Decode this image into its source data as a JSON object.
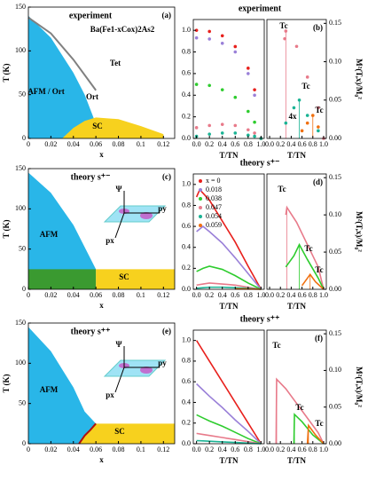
{
  "chart_data": [
    {
      "type": "area",
      "title": "experiment",
      "panel": "(a)",
      "xlabel": "x",
      "ylabel": "T (K)",
      "xlim": [
        0,
        0.13
      ],
      "ylim": [
        0,
        150
      ],
      "xticks": [
        0,
        0.02,
        0.04,
        0.06,
        0.08,
        0.1,
        0.12
      ],
      "yticks": [
        0,
        50,
        100,
        150
      ],
      "series": [
        {
          "style": "area",
          "color": "#29b6e8",
          "x": [
            0,
            0.02,
            0.04,
            0.05,
            0.065
          ],
          "values": [
            140,
            115,
            75,
            50,
            0
          ]
        },
        {
          "style": "area",
          "color": "#f7d11e",
          "x": [
            0.03,
            0.04,
            0.05,
            0.06,
            0.08,
            0.1,
            0.12
          ],
          "values": [
            0,
            12,
            20,
            24,
            22,
            14,
            5
          ]
        },
        {
          "style": "line",
          "color": "#808080",
          "x": [
            0,
            0.02,
            0.04,
            0.06
          ],
          "values": [
            138,
            120,
            90,
            55
          ]
        }
      ],
      "annotations": [
        "Ba(Fe1-xCox)2As2",
        "Tet",
        "AFM / Ort",
        "Ort",
        "SC"
      ]
    },
    {
      "type": "scatter",
      "title": "experiment",
      "xlabel": "T/TN",
      "xlim": [
        -0.05,
        1.05
      ],
      "ylim": [
        0,
        1.1
      ],
      "xticks": [
        {
          "value": 0,
          "label": "0.0"
        },
        0.2,
        0.4,
        0.6,
        0.8,
        {
          "value": 1,
          "label": "1.0"
        }
      ],
      "yticks": [
        {
          "value": 0,
          "label": "0.0"
        },
        0.2,
        0.4,
        0.6,
        0.8,
        {
          "value": 1,
          "label": "1.0"
        }
      ],
      "series": [
        {
          "color": "#e8201c",
          "x": [
            0,
            0.2,
            0.4,
            0.6,
            0.8,
            0.9,
            1
          ],
          "values": [
            1,
            0.99,
            0.95,
            0.85,
            0.65,
            0.45,
            0
          ]
        },
        {
          "color": "#9a80d8",
          "x": [
            0,
            0.2,
            0.4,
            0.6,
            0.8,
            0.9,
            1
          ],
          "values": [
            0.93,
            0.92,
            0.88,
            0.8,
            0.6,
            0.4,
            0
          ]
        },
        {
          "color": "#2ecc2e",
          "x": [
            0,
            0.2,
            0.4,
            0.6,
            0.8,
            0.9,
            1
          ],
          "values": [
            0.5,
            0.49,
            0.45,
            0.38,
            0.25,
            0.15,
            0
          ]
        },
        {
          "color": "#e87a8a",
          "x": [
            0,
            0.2,
            0.4,
            0.6,
            0.8,
            0.9,
            1
          ],
          "values": [
            0.1,
            0.12,
            0.13,
            0.12,
            0.08,
            0.05,
            0
          ]
        },
        {
          "color": "#1ab394",
          "x": [
            0,
            0.2,
            0.4,
            0.6,
            0.8,
            0.9,
            1
          ],
          "values": [
            0.02,
            0.04,
            0.05,
            0.05,
            0.03,
            0.02,
            0
          ]
        }
      ]
    },
    {
      "type": "scatter",
      "panel": "(b)",
      "xlabel": "T/TN",
      "y2label": "M²(T,x)/M₀²",
      "xlim": [
        -0.05,
        1.05
      ],
      "ylim": [
        0,
        0.155
      ],
      "xticks": [
        {
          "value": 0,
          "label": "0.0"
        },
        0.2,
        0.4,
        0.6,
        0.8,
        {
          "value": 1,
          "label": "1.0"
        }
      ],
      "yticks": [
        {
          "value": 0,
          "label": "0.00"
        },
        0.05,
        {
          "value": 0.1,
          "label": "0.10"
        },
        0.15
      ],
      "series": [
        {
          "color": "#e87a8a",
          "x": [
            0.28,
            0.3,
            0.5,
            0.7,
            0.9,
            1
          ],
          "values": [
            0.13,
            0.14,
            0.12,
            0.08,
            0.04,
            0
          ]
        },
        {
          "color": "#1ab394",
          "x": [
            0.3,
            0.45,
            0.55,
            0.7,
            0.9
          ],
          "values": [
            0.02,
            0.04,
            0.05,
            0.03,
            0.01
          ]
        },
        {
          "color": "#f07010",
          "x": [
            0.6,
            0.7,
            0.8,
            0.9
          ],
          "values": [
            0.01,
            0.02,
            0.03,
            0.015
          ]
        }
      ],
      "annotations": [
        "Tc",
        "Tc",
        "Tc",
        "4x"
      ]
    },
    {
      "type": "area",
      "title": "theory s⁺⁻",
      "panel": "(c)",
      "xlabel": "x",
      "ylabel": "T (K)",
      "xlim": [
        0,
        0.13
      ],
      "ylim": [
        0,
        150
      ],
      "xticks": [
        0,
        0.02,
        0.04,
        0.06,
        0.08,
        0.1,
        0.12
      ],
      "yticks": [
        0,
        50,
        100,
        150
      ],
      "series": [
        {
          "style": "area",
          "color": "#29b6e8",
          "x": [
            0,
            0.02,
            0.04,
            0.06
          ],
          "values": [
            145,
            120,
            80,
            25
          ]
        },
        {
          "style": "area",
          "color": "#3a9a30",
          "x": [
            0,
            0.06
          ],
          "values": [
            25,
            25
          ]
        },
        {
          "style": "area",
          "color": "#f7d11e",
          "x": [
            0.06,
            0.13
          ],
          "values": [
            25,
            25
          ]
        }
      ],
      "annotations": [
        "AFM",
        "SC",
        "Ψ",
        "py",
        "px"
      ]
    },
    {
      "type": "line",
      "title": "theory s⁺⁻",
      "xlabel": "T/TN",
      "legend": "upper left",
      "xlim": [
        -0.05,
        1.05
      ],
      "ylim": [
        0,
        1.1
      ],
      "xticks": [
        {
          "value": 0,
          "label": "0.0"
        },
        0.2,
        0.4,
        0.6,
        0.8,
        {
          "value": 1,
          "label": "1.0"
        }
      ],
      "yticks": [
        {
          "value": 0,
          "label": "0.0"
        },
        0.2,
        0.4,
        0.6,
        0.8,
        {
          "value": 1,
          "label": "1.0"
        }
      ],
      "series": [
        {
          "name": "x = 0",
          "color": "#e8201c",
          "x": [
            0,
            0.05,
            0.2,
            0.4,
            0.6,
            0.8,
            1
          ],
          "values": [
            0.88,
            0.95,
            0.85,
            0.65,
            0.45,
            0.22,
            0
          ]
        },
        {
          "name": "0.018",
          "color": "#9a80d8",
          "x": [
            0,
            0.1,
            0.2,
            0.4,
            0.6,
            0.8,
            1
          ],
          "values": [
            0.55,
            0.6,
            0.55,
            0.44,
            0.3,
            0.15,
            0
          ]
        },
        {
          "name": "0.038",
          "color": "#2ecc2e",
          "x": [
            0,
            0.1,
            0.2,
            0.4,
            0.6,
            0.8,
            1
          ],
          "values": [
            0.17,
            0.2,
            0.22,
            0.19,
            0.13,
            0.06,
            0
          ]
        },
        {
          "name": "0.047",
          "color": "#e87a8a",
          "x": [
            0,
            0.1,
            0.2,
            0.4,
            0.6,
            0.8,
            1
          ],
          "values": [
            0.04,
            0.05,
            0.06,
            0.05,
            0.04,
            0.02,
            0
          ]
        },
        {
          "name": "0.054",
          "color": "#1ab394",
          "x": [
            0,
            0.1,
            0.2,
            0.4,
            0.6,
            0.8,
            1
          ],
          "values": [
            0.01,
            0.015,
            0.02,
            0.02,
            0.015,
            0.01,
            0
          ]
        },
        {
          "name": "0.059",
          "color": "#f07010",
          "x": [
            0.6,
            0.8,
            1
          ],
          "values": [
            0.005,
            0.004,
            0
          ]
        }
      ]
    },
    {
      "type": "line",
      "panel": "(d)",
      "xlabel": "T/TN",
      "y2label": "M²(T,x)/M₀²",
      "xlim": [
        -0.05,
        1.05
      ],
      "ylim": [
        0,
        0.155
      ],
      "xticks": [
        {
          "value": 0,
          "label": "0.0"
        },
        0.2,
        0.4,
        0.6,
        0.8,
        {
          "value": 1,
          "label": "1.0"
        }
      ],
      "yticks": [
        {
          "value": 0,
          "label": "0.00"
        },
        0.05,
        {
          "value": 0.1,
          "label": "0.10"
        },
        0.15
      ],
      "series": [
        {
          "color": "#e87a8a",
          "x": [
            0.3,
            0.32,
            0.5,
            0.7,
            0.9,
            1
          ],
          "values": [
            0.1,
            0.11,
            0.09,
            0.06,
            0.03,
            0
          ]
        },
        {
          "color": "#2ecc2e",
          "x": [
            0.3,
            0.45,
            0.55,
            0.7,
            0.9,
            1
          ],
          "values": [
            0.03,
            0.045,
            0.06,
            0.04,
            0.015,
            0
          ]
        },
        {
          "color": "#f07010",
          "x": [
            0.6,
            0.7,
            0.75,
            0.85,
            1
          ],
          "values": [
            0.005,
            0.015,
            0.02,
            0.01,
            0
          ]
        }
      ],
      "annotations": [
        "Tc",
        "Tc",
        "Tc"
      ]
    },
    {
      "type": "area",
      "title": "theory s⁺⁺",
      "panel": "(e)",
      "xlabel": "x",
      "ylabel": "T (K)",
      "xlim": [
        0,
        0.13
      ],
      "ylim": [
        0,
        150
      ],
      "xticks": [
        0,
        0.02,
        0.04,
        0.06,
        0.08,
        0.1,
        0.12
      ],
      "yticks": [
        0,
        50,
        100,
        150
      ],
      "series": [
        {
          "style": "area",
          "color": "#29b6e8",
          "x": [
            0,
            0.02,
            0.04,
            0.05,
            0.06
          ],
          "values": [
            145,
            115,
            70,
            40,
            25
          ]
        },
        {
          "style": "area",
          "color": "#f7d11e",
          "x": [
            0.045,
            0.05,
            0.055,
            0.06,
            0.13
          ],
          "values": [
            0,
            10,
            17,
            25,
            25
          ]
        },
        {
          "style": "line",
          "color": "#b01010",
          "x": [
            0.045,
            0.05,
            0.055,
            0.06
          ],
          "values": [
            0,
            10,
            17,
            25
          ]
        }
      ],
      "annotations": [
        "AFM",
        "SC",
        "Ψ",
        "py",
        "px"
      ]
    },
    {
      "type": "line",
      "title": "theory s⁺⁺",
      "xlabel": "T/TN",
      "xlim": [
        -0.05,
        1.05
      ],
      "ylim": [
        0,
        1.1
      ],
      "xticks": [
        {
          "value": 0,
          "label": "0.0"
        },
        0.2,
        0.4,
        0.6,
        0.8,
        {
          "value": 1,
          "label": "1.0"
        }
      ],
      "yticks": [
        {
          "value": 0,
          "label": "0.0"
        },
        0.2,
        0.4,
        0.6,
        0.8,
        {
          "value": 1,
          "label": "1.0"
        }
      ],
      "series": [
        {
          "color": "#e8201c",
          "x": [
            0,
            0.1,
            0.2,
            0.4,
            0.6,
            0.8,
            1
          ],
          "values": [
            1,
            0.9,
            0.8,
            0.6,
            0.4,
            0.2,
            0
          ]
        },
        {
          "color": "#9a80d8",
          "x": [
            0,
            0.1,
            0.2,
            0.4,
            0.6,
            0.8,
            1
          ],
          "values": [
            0.58,
            0.52,
            0.46,
            0.35,
            0.23,
            0.12,
            0
          ]
        },
        {
          "color": "#2ecc2e",
          "x": [
            0,
            0.1,
            0.2,
            0.4,
            0.6,
            0.8,
            1
          ],
          "values": [
            0.28,
            0.25,
            0.22,
            0.17,
            0.11,
            0.05,
            0
          ]
        },
        {
          "color": "#e87a8a",
          "x": [
            0,
            0.1,
            0.2,
            0.4,
            0.6,
            0.8,
            1
          ],
          "values": [
            0.1,
            0.09,
            0.08,
            0.06,
            0.04,
            0.02,
            0
          ]
        },
        {
          "color": "#1ab394",
          "x": [
            0,
            0.1,
            0.2,
            0.4,
            0.6,
            0.8,
            1
          ],
          "values": [
            0.03,
            0.027,
            0.024,
            0.018,
            0.012,
            0.006,
            0
          ]
        }
      ]
    },
    {
      "type": "line",
      "panel": "(f)",
      "xlabel": "T/TN",
      "y2label": "M²(T,x)/M₀²",
      "xlim": [
        -0.05,
        1.05
      ],
      "ylim": [
        0,
        0.155
      ],
      "xticks": [
        {
          "value": 0,
          "label": "0.0"
        },
        0.2,
        0.4,
        0.6,
        0.8,
        {
          "value": 1,
          "label": "1.0"
        }
      ],
      "yticks": [
        {
          "value": 0,
          "label": "0.00"
        },
        0.05,
        {
          "value": 0.1,
          "label": "0.10"
        },
        0.15
      ],
      "series": [
        {
          "color": "#e87a8a",
          "x": [
            0.12,
            0.13,
            0.3,
            0.5,
            0.7,
            0.9,
            1
          ],
          "values": [
            0,
            0.088,
            0.075,
            0.055,
            0.035,
            0.015,
            0
          ]
        },
        {
          "color": "#2ecc2e",
          "x": [
            0.45,
            0.46,
            0.6,
            0.8,
            1
          ],
          "values": [
            0,
            0.04,
            0.03,
            0.012,
            0
          ]
        },
        {
          "color": "#f07010",
          "x": [
            0.7,
            0.72,
            0.85,
            1
          ],
          "values": [
            0,
            0.025,
            0.012,
            0
          ]
        }
      ],
      "annotations": [
        "Tc",
        "Tc",
        "Tc"
      ]
    }
  ]
}
